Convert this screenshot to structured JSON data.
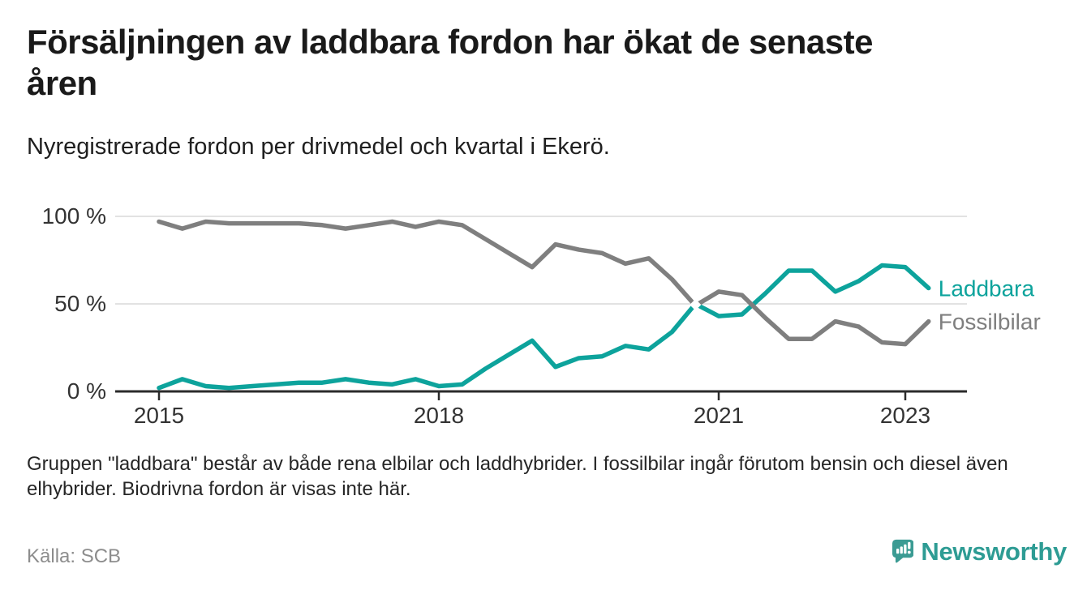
{
  "header": {
    "title_line1": "Försäljningen av laddbara fordon har ökat de senaste",
    "title_line2": "åren",
    "subtitle": "Nyregistrerade fordon per drivmedel och kvartal i Ekerö."
  },
  "chart_data": {
    "type": "line",
    "x_unit": "quarter",
    "y_unit": "%",
    "ylim": [
      0,
      100
    ],
    "grid": "horizontal",
    "legend_position": "line-end-right",
    "x": [
      2015.0,
      2015.25,
      2015.5,
      2015.75,
      2016.0,
      2016.25,
      2016.5,
      2016.75,
      2017.0,
      2017.25,
      2017.5,
      2017.75,
      2018.0,
      2018.25,
      2018.5,
      2018.75,
      2019.0,
      2019.25,
      2019.5,
      2019.75,
      2020.0,
      2020.25,
      2020.5,
      2020.75,
      2021.0,
      2021.25,
      2021.5,
      2021.75,
      2022.0,
      2022.25,
      2022.5,
      2022.75,
      2023.0,
      2023.25
    ],
    "series": [
      {
        "name": "Laddbara",
        "color": "#0da39c",
        "values": [
          2,
          7,
          3,
          2,
          3,
          4,
          5,
          5,
          7,
          5,
          4,
          7,
          3,
          4,
          13,
          21,
          29,
          14,
          19,
          20,
          26,
          24,
          34,
          50,
          43,
          44,
          56,
          69,
          69,
          57,
          63,
          72,
          71,
          59
        ]
      },
      {
        "name": "Fossilbilar",
        "color": "#7f7f7f",
        "values": [
          97,
          93,
          97,
          96,
          96,
          96,
          96,
          95,
          93,
          95,
          97,
          94,
          97,
          95,
          87,
          79,
          71,
          84,
          81,
          79,
          73,
          76,
          64,
          49,
          57,
          55,
          42,
          30,
          30,
          40,
          37,
          28,
          27,
          40
        ]
      }
    ],
    "x_ticks": [
      {
        "label": "2015",
        "year": 2015
      },
      {
        "label": "2018",
        "year": 2018
      },
      {
        "label": "2021",
        "year": 2021
      },
      {
        "label": "2023",
        "year": 2023
      }
    ],
    "y_ticks": [
      {
        "label": "100 %",
        "value": 100
      },
      {
        "label": "50 %",
        "value": 50
      },
      {
        "label": "0 %",
        "value": 0
      }
    ]
  },
  "footnote": {
    "line1": "Gruppen \"laddbara\" består av både rena elbilar och laddhybrider. I fossilbilar ingår förutom bensin och diesel även",
    "line2": "elhybrider. Biodrivna fordon är visas inte här."
  },
  "source": {
    "label": "Källa: SCB"
  },
  "branding": {
    "wordmark": "Newsworthy",
    "logo_icon": "bar-chart-speech-bubble-icon",
    "brand_color": "#2e9c94"
  },
  "colors": {
    "laddbara": "#0da39c",
    "fossilbilar": "#7f7f7f",
    "axis": "#2b2b2b",
    "grid": "#d9d9d9"
  }
}
